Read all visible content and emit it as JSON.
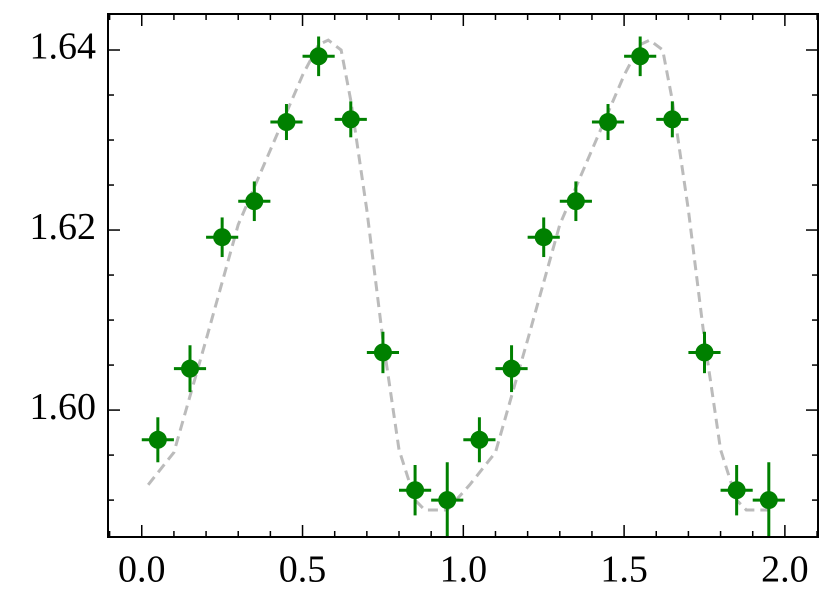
{
  "chart_data": {
    "type": "errorbar",
    "xlim": [
      -0.105,
      2.103
    ],
    "ylim": [
      1.5859,
      1.644
    ],
    "xticks": [
      {
        "value": 0,
        "label": "0.0"
      },
      {
        "value": 0.5,
        "label": "0.5"
      },
      {
        "value": 1,
        "label": "1.0"
      },
      {
        "value": 1.5,
        "label": "1.5"
      },
      {
        "value": 2,
        "label": "2.0"
      }
    ],
    "yticks": [
      {
        "value": 1.6,
        "label": "1.60"
      },
      {
        "value": 1.62,
        "label": "1.62"
      },
      {
        "value": 1.64,
        "label": "1.64"
      }
    ],
    "xminorticks": [
      -0.1,
      0.1,
      0.2,
      0.3,
      0.4,
      0.6,
      0.7,
      0.8,
      0.9,
      1.1,
      1.2,
      1.3,
      1.4,
      1.6,
      1.7,
      1.8,
      1.9,
      2.1
    ],
    "yminorticks": [
      1.59,
      1.595,
      1.605,
      1.61,
      1.615,
      1.625,
      1.63,
      1.635
    ],
    "model": {
      "color": "#bbbbbb",
      "x": [
        0.02,
        0.1,
        0.2,
        0.3,
        0.4,
        0.5,
        0.55,
        0.58,
        0.62,
        0.65,
        0.7,
        0.75,
        0.8,
        0.85,
        0.88,
        0.95,
        1.0,
        1.02,
        1.1,
        1.2,
        1.3,
        1.4,
        1.5,
        1.55,
        1.58,
        1.62,
        1.65,
        1.7,
        1.75,
        1.8,
        1.85,
        1.88,
        1.95
      ],
      "values": [
        1.5917,
        1.5953,
        1.6078,
        1.6206,
        1.6289,
        1.6372,
        1.6406,
        1.6411,
        1.64,
        1.6344,
        1.6222,
        1.6078,
        1.5956,
        1.59,
        1.5889,
        1.5889,
        1.5909,
        1.5917,
        1.5953,
        1.6078,
        1.6206,
        1.6289,
        1.6372,
        1.6406,
        1.6411,
        1.64,
        1.6344,
        1.6222,
        1.6078,
        1.5956,
        1.59,
        1.5889,
        1.5889
      ]
    },
    "points": {
      "color": "#008000",
      "x": [
        0.05,
        0.15,
        0.25,
        0.35,
        0.45,
        0.55,
        0.65,
        0.75,
        0.85,
        0.95,
        1.05,
        1.15,
        1.25,
        1.35,
        1.45,
        1.55,
        1.65,
        1.75,
        1.85,
        1.95
      ],
      "values": [
        1.5967,
        1.6046,
        1.6192,
        1.6232,
        1.632,
        1.6393,
        1.6323,
        1.6064,
        1.5911,
        1.59,
        1.5967,
        1.6046,
        1.6192,
        1.6232,
        1.632,
        1.6393,
        1.6323,
        1.6064,
        1.5911,
        1.59
      ],
      "yerr": [
        0.0025,
        0.0026,
        0.0022,
        0.0022,
        0.002,
        0.0022,
        0.002,
        0.0023,
        0.0028,
        0.0042,
        0.0025,
        0.0026,
        0.0022,
        0.0022,
        0.002,
        0.0022,
        0.002,
        0.0023,
        0.0028,
        0.0042
      ],
      "xerr": [
        0.05,
        0.05,
        0.05,
        0.05,
        0.05,
        0.05,
        0.05,
        0.05,
        0.05,
        0.05,
        0.05,
        0.05,
        0.05,
        0.05,
        0.05,
        0.05,
        0.05,
        0.05,
        0.05,
        0.05
      ]
    }
  }
}
